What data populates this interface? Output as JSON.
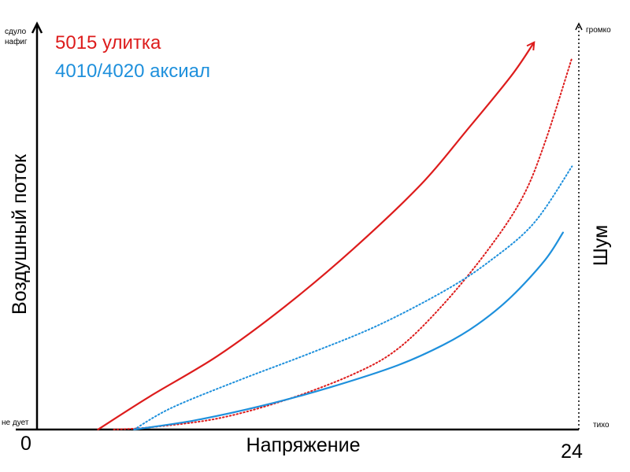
{
  "chart_data": {
    "type": "line",
    "x_axis": {
      "label": "Напряжение",
      "tick_labels": [
        "0",
        "24"
      ],
      "range": [
        0,
        24
      ]
    },
    "y_axis_left": {
      "label": "Воздушный поток",
      "top_label": "сдуло нафиг",
      "top_label_lines": [
        "сдуло",
        "нафиг"
      ],
      "bottom_label": "не дует"
    },
    "y_axis_right": {
      "label": "Шум",
      "top_label": "громко",
      "bottom_label": "тихо",
      "style": "dotted"
    },
    "y_range": [
      0,
      100
    ],
    "grid": false,
    "legend": {
      "placement": "top-left",
      "entries": [
        {
          "label": "5015 улитка",
          "color": "#dd1c1c"
        },
        {
          "label": "4010/4020 аксиал",
          "color": "#1e90dc"
        }
      ]
    },
    "series": [
      {
        "id": "red-airflow",
        "color": "#dd1c1c",
        "style": "solid",
        "axis": "left",
        "arrow": true,
        "points": [
          [
            2.7,
            0
          ],
          [
            5,
            9
          ],
          [
            8,
            20
          ],
          [
            11,
            33.5
          ],
          [
            14,
            49
          ],
          [
            17,
            66.5
          ],
          [
            19,
            81
          ],
          [
            21,
            96
          ],
          [
            22,
            105
          ]
        ]
      },
      {
        "id": "red-noise",
        "color": "#dd1c1c",
        "style": "dotted",
        "axis": "right",
        "points": [
          [
            3.4,
            0
          ],
          [
            5,
            0.6
          ],
          [
            8,
            3
          ],
          [
            11,
            8
          ],
          [
            14,
            15
          ],
          [
            16,
            22
          ],
          [
            18,
            34
          ],
          [
            20,
            49
          ],
          [
            21.5,
            63
          ],
          [
            22.5,
            78
          ],
          [
            23.7,
            101
          ]
        ]
      },
      {
        "id": "blue-noise",
        "color": "#1e90dc",
        "style": "dotted",
        "axis": "right",
        "points": [
          [
            4.3,
            0
          ],
          [
            6,
            6
          ],
          [
            9,
            13.5
          ],
          [
            12,
            20.5
          ],
          [
            15,
            28
          ],
          [
            18,
            37.5
          ],
          [
            20,
            45.5
          ],
          [
            22,
            56
          ],
          [
            23.7,
            71.5
          ]
        ]
      },
      {
        "id": "blue-airflow",
        "color": "#1e90dc",
        "style": "solid",
        "axis": "left",
        "points": [
          [
            4.3,
            0
          ],
          [
            7,
            2.5
          ],
          [
            10,
            6.5
          ],
          [
            13,
            11.5
          ],
          [
            16,
            17.5
          ],
          [
            18,
            23
          ],
          [
            19.5,
            28.5
          ],
          [
            21,
            36
          ],
          [
            22.5,
            46
          ],
          [
            23.3,
            53.5
          ]
        ]
      }
    ]
  }
}
